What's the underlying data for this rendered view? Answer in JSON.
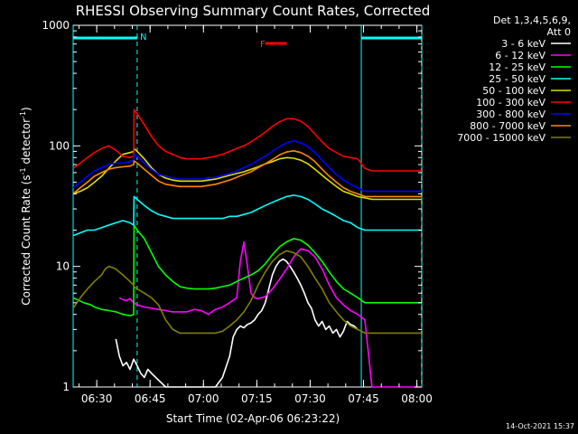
{
  "chart_data": {
    "type": "line",
    "title": "RHESSI Observing Summary Count Rates, Corrected",
    "xlabel": "Start Time (02-Apr-06 06:23:22)",
    "ylabel": "Corrected Count Rate (s",
    "ylabel_sup1": "-1",
    "ylabel_mid": " detector",
    "ylabel_sup2": "-1",
    "ylabel_end": ")",
    "yscale": "log",
    "ylim": [
      1,
      1000
    ],
    "xlim_minutes": [
      0,
      98
    ],
    "x_tick_minutes": [
      6.63,
      21.63,
      36.63,
      51.63,
      66.63,
      81.63,
      96.63
    ],
    "x_tick_labels": [
      "06:30",
      "06:45",
      "07:00",
      "07:15",
      "07:30",
      "07:45",
      "08:00"
    ],
    "y_tick_values": [
      1,
      10,
      100,
      1000
    ],
    "y_tick_labels": [
      "1",
      "10",
      "100",
      "1000"
    ],
    "legend_title_1": "Det 1,3,4,5,6,9,",
    "legend_title_2": "Att 0",
    "timestamp": "14-Oct-2021 15:37",
    "annotations": {
      "night_label": "N",
      "flare_label": "F"
    },
    "night_intervals": [
      [
        0,
        18
      ],
      [
        81,
        98
      ]
    ],
    "flare_interval": [
      54,
      60
    ],
    "series": [
      {
        "name": "3 - 6 keV",
        "color": "#ffffff",
        "x": [
          12,
          13,
          14,
          15,
          16,
          17,
          18,
          19,
          20,
          21,
          22,
          26,
          30,
          34,
          38,
          40,
          42,
          44,
          45,
          46,
          47,
          48,
          49,
          50,
          51,
          52,
          53,
          54,
          55,
          56,
          57,
          58,
          59,
          60,
          61,
          62,
          63,
          64,
          65,
          66,
          67,
          68,
          69,
          70,
          71,
          72,
          73,
          74,
          75,
          76,
          77,
          78,
          79,
          80
        ],
        "values": [
          2.5,
          1.8,
          1.5,
          1.6,
          1.4,
          1.7,
          1.5,
          1.3,
          1.2,
          1.4,
          1.3,
          1.0,
          1.0,
          1.0,
          1.0,
          1.0,
          1.2,
          1.8,
          2.6,
          3.0,
          3.2,
          3.1,
          3.3,
          3.4,
          3.6,
          4.0,
          4.3,
          5.0,
          6.5,
          8.5,
          10,
          11,
          11.5,
          11,
          10,
          9,
          8,
          7,
          6,
          5,
          4.5,
          3.6,
          3.2,
          3.5,
          3.0,
          3.2,
          2.8,
          3.0,
          2.6,
          2.9,
          3.5,
          3.3,
          3.2,
          3.0
        ]
      },
      {
        "name": "6 - 12 keV",
        "color": "#ff00ff",
        "x": [
          13,
          14,
          15,
          16,
          17,
          18,
          19,
          20,
          22,
          24,
          26,
          28,
          30,
          32,
          34,
          36,
          38,
          40,
          42,
          44,
          46,
          47,
          48,
          49,
          50,
          51,
          52,
          54,
          56,
          58,
          60,
          62,
          64,
          66,
          68,
          70,
          72,
          74,
          76,
          78,
          80,
          82,
          84,
          86,
          88,
          90,
          92,
          94,
          96,
          98
        ],
        "values": [
          5.5,
          5.3,
          5.2,
          5.4,
          5.0,
          4.8,
          4.7,
          4.6,
          4.5,
          4.4,
          4.3,
          4.2,
          4.2,
          4.2,
          4.4,
          4.3,
          4.0,
          4.4,
          4.6,
          5.0,
          5.5,
          11,
          16,
          10,
          6,
          5.5,
          5.4,
          5.6,
          6.5,
          7.8,
          9.5,
          12,
          14,
          13.5,
          12,
          9.5,
          7,
          5.5,
          4.8,
          4.3,
          4.0,
          3.6,
          1.0,
          1.0,
          1.0,
          1.0,
          1.0,
          1.0,
          1.0,
          1.0
        ]
      },
      {
        "name": "12 - 25 keV",
        "color": "#00ff00",
        "x": [
          0,
          3,
          5,
          6,
          7,
          8,
          10,
          12,
          14,
          16,
          17,
          17.1,
          18,
          20,
          22,
          24,
          26,
          28,
          30,
          32,
          34,
          36,
          38,
          40,
          42,
          44,
          46,
          48,
          50,
          52,
          54,
          56,
          58,
          60,
          62,
          64,
          66,
          68,
          70,
          72,
          74,
          76,
          78,
          80,
          82,
          84,
          86,
          88,
          90,
          92,
          94,
          96,
          98
        ],
        "values": [
          5.5,
          5.0,
          4.8,
          4.6,
          4.5,
          4.4,
          4.3,
          4.2,
          4.0,
          3.9,
          4.0,
          22,
          20,
          17,
          13,
          10,
          8.5,
          7.5,
          6.8,
          6.6,
          6.5,
          6.5,
          6.5,
          6.6,
          6.8,
          7.0,
          7.5,
          8.0,
          8.5,
          9.2,
          10.5,
          12.5,
          14.5,
          16,
          17,
          16.5,
          15,
          13,
          11,
          9,
          7.5,
          6.5,
          6.0,
          5.5,
          5.0,
          5.0,
          5.0,
          5.0,
          5.0,
          5.0,
          5.0,
          5.0,
          5.0
        ]
      },
      {
        "name": "25 - 50 keV",
        "color": "#00ffff",
        "x": [
          0,
          2,
          4,
          6,
          8,
          10,
          12,
          14,
          16,
          17,
          17.1,
          18,
          20,
          22,
          24,
          26,
          28,
          30,
          32,
          34,
          36,
          38,
          40,
          42,
          44,
          46,
          48,
          50,
          52,
          54,
          56,
          58,
          60,
          62,
          64,
          66,
          68,
          70,
          72,
          74,
          76,
          78,
          80,
          82,
          84,
          86,
          88,
          90,
          92,
          94,
          96,
          98
        ],
        "values": [
          18,
          19,
          20,
          20,
          21,
          22,
          23,
          24,
          23,
          22,
          38,
          36,
          32,
          29,
          27,
          26,
          25,
          25,
          25,
          25,
          25,
          25,
          25,
          25,
          26,
          26,
          27,
          28,
          30,
          32,
          34,
          36,
          38,
          39,
          38,
          36,
          33,
          30,
          28,
          26,
          24,
          23,
          21,
          20,
          20,
          20,
          20,
          20,
          20,
          20,
          20,
          20
        ]
      },
      {
        "name": "50 - 100 keV",
        "color": "#dddd00",
        "x": [
          0,
          2,
          4,
          6,
          8,
          10,
          12,
          14,
          16,
          17,
          17.1,
          18,
          20,
          22,
          24,
          26,
          28,
          30,
          32,
          34,
          36,
          38,
          40,
          42,
          44,
          46,
          48,
          50,
          52,
          54,
          56,
          58,
          60,
          62,
          64,
          66,
          68,
          70,
          72,
          74,
          76,
          78,
          80,
          82,
          84,
          86,
          88,
          90,
          92,
          94,
          96,
          98
        ],
        "values": [
          40,
          42,
          45,
          50,
          56,
          65,
          75,
          85,
          88,
          90,
          95,
          90,
          78,
          66,
          58,
          54,
          52,
          51,
          51,
          51,
          51,
          52,
          53,
          55,
          57,
          59,
          61,
          64,
          67,
          71,
          74,
          78,
          80,
          79,
          76,
          71,
          64,
          57,
          51,
          46,
          42,
          40,
          38,
          37,
          36,
          36,
          36,
          36,
          36,
          36,
          36,
          36
        ]
      },
      {
        "name": "100 - 300 keV",
        "color": "#ff0000",
        "x": [
          0,
          2,
          4,
          6,
          8,
          10,
          12,
          14,
          16,
          17,
          17.1,
          18,
          20,
          22,
          24,
          26,
          28,
          30,
          32,
          34,
          36,
          38,
          40,
          42,
          44,
          46,
          48,
          50,
          52,
          54,
          56,
          58,
          60,
          62,
          64,
          66,
          68,
          70,
          72,
          74,
          76,
          78,
          80,
          82,
          84,
          86,
          88,
          90,
          92,
          94,
          96,
          98
        ],
        "values": [
          65,
          72,
          80,
          88,
          95,
          100,
          92,
          82,
          80,
          82,
          200,
          185,
          150,
          120,
          100,
          90,
          85,
          80,
          78,
          78,
          78,
          80,
          82,
          85,
          90,
          95,
          100,
          108,
          118,
          130,
          145,
          158,
          168,
          168,
          160,
          145,
          125,
          108,
          95,
          88,
          82,
          80,
          78,
          65,
          62,
          62,
          62,
          62,
          62,
          62,
          62,
          62
        ]
      },
      {
        "name": "300 - 800 keV",
        "color": "#0000ff",
        "x": [
          0,
          2,
          4,
          6,
          8,
          10,
          12,
          14,
          16,
          17,
          17.1,
          18,
          20,
          22,
          24,
          26,
          28,
          30,
          32,
          34,
          36,
          38,
          40,
          42,
          44,
          46,
          48,
          50,
          52,
          54,
          56,
          58,
          60,
          62,
          64,
          66,
          68,
          70,
          72,
          74,
          76,
          78,
          80,
          82,
          84,
          86,
          88,
          90,
          92,
          94,
          96,
          98
        ],
        "values": [
          45,
          50,
          56,
          62,
          66,
          70,
          72,
          72,
          74,
          76,
          85,
          82,
          72,
          64,
          58,
          56,
          54,
          53,
          53,
          53,
          53,
          54,
          55,
          57,
          59,
          62,
          66,
          70,
          76,
          82,
          90,
          98,
          106,
          110,
          106,
          98,
          88,
          76,
          66,
          58,
          52,
          48,
          45,
          42,
          42,
          42,
          42,
          42,
          42,
          42,
          42,
          42
        ]
      },
      {
        "name": "800 - 7000 keV",
        "color": "#ff8800",
        "x": [
          0,
          2,
          4,
          6,
          8,
          10,
          12,
          14,
          16,
          17,
          17.1,
          18,
          20,
          22,
          24,
          26,
          28,
          30,
          32,
          34,
          36,
          38,
          40,
          42,
          44,
          46,
          48,
          50,
          52,
          54,
          56,
          58,
          60,
          62,
          64,
          66,
          68,
          70,
          72,
          74,
          76,
          78,
          80,
          82,
          84,
          86,
          88,
          90,
          92,
          94,
          96,
          98
        ],
        "values": [
          40,
          45,
          50,
          56,
          60,
          64,
          66,
          67,
          68,
          70,
          75,
          72,
          64,
          57,
          51,
          48,
          47,
          46,
          46,
          46,
          46,
          47,
          48,
          50,
          52,
          55,
          58,
          61,
          66,
          71,
          77,
          84,
          89,
          91,
          88,
          82,
          74,
          64,
          56,
          50,
          45,
          42,
          40,
          38,
          38,
          38,
          38,
          38,
          38,
          38,
          38,
          38
        ]
      },
      {
        "name": "7000 - 15000 keV",
        "color": "#808000",
        "x": [
          0,
          2,
          4,
          6,
          8,
          9,
          10,
          11,
          12,
          14,
          16,
          17,
          17.1,
          18,
          20,
          22,
          24,
          26,
          28,
          30,
          32,
          34,
          36,
          38,
          40,
          42,
          44,
          46,
          48,
          50,
          52,
          54,
          56,
          58,
          60,
          62,
          64,
          66,
          68,
          70,
          72,
          74,
          76,
          78,
          80,
          82,
          84,
          86,
          88,
          90,
          92,
          94,
          96,
          98
        ],
        "values": [
          4.5,
          5.5,
          6.5,
          7.5,
          8.5,
          9.5,
          10,
          9.8,
          9.5,
          8.5,
          7.5,
          7,
          6.8,
          6.5,
          6,
          5.5,
          4.8,
          3.6,
          3.0,
          2.8,
          2.8,
          2.8,
          2.8,
          2.8,
          2.8,
          2.9,
          3.2,
          3.6,
          4.2,
          5.2,
          7,
          9,
          11,
          12.5,
          13.5,
          13,
          12,
          10,
          8,
          6.5,
          5,
          4.2,
          3.6,
          3.2,
          3.0,
          2.8,
          2.8,
          2.8,
          2.8,
          2.8,
          2.8,
          2.8,
          2.8,
          2.8
        ]
      }
    ]
  }
}
